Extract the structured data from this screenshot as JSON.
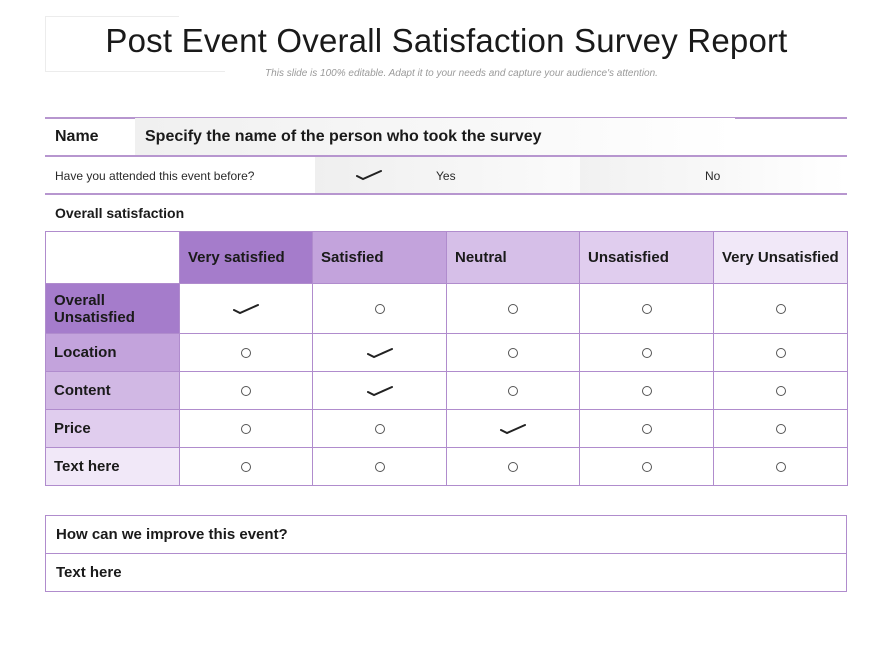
{
  "title": "Post Event Overall Satisfaction Survey Report",
  "subtitle": "This slide is 100% editable. Adapt it to your needs and capture your audience's attention.",
  "name_row": {
    "label": "Name",
    "value": "Specify the name of the person who took the survey"
  },
  "attended_row": {
    "question": "Have you attended this event before?",
    "yes": "Yes",
    "no": "No",
    "selected": "Yes"
  },
  "overall_label": "Overall satisfaction",
  "grid": {
    "columns": [
      "Very satisfied",
      "Satisfied",
      "Neutral",
      "Unsatisfied",
      "Very Unsatisfied"
    ],
    "rows": [
      {
        "label": "Overall Unsatisfied",
        "selected": 0
      },
      {
        "label": "Location",
        "selected": 1
      },
      {
        "label": "Content",
        "selected": 1
      },
      {
        "label": "Price",
        "selected": 2
      },
      {
        "label": "Text here",
        "selected": -1
      }
    ],
    "column_colors": [
      "#a57ccb",
      "#c3a3dc",
      "#d6bfe8",
      "#e0cdee",
      "#f1e8f8"
    ],
    "row_colors": [
      "#a57ccb",
      "#c3a3dc",
      "#d1b8e4",
      "#e0cdee",
      "#f1e8f8"
    ]
  },
  "improve": {
    "question": "How can we improve this event?",
    "answer": "Text here"
  }
}
